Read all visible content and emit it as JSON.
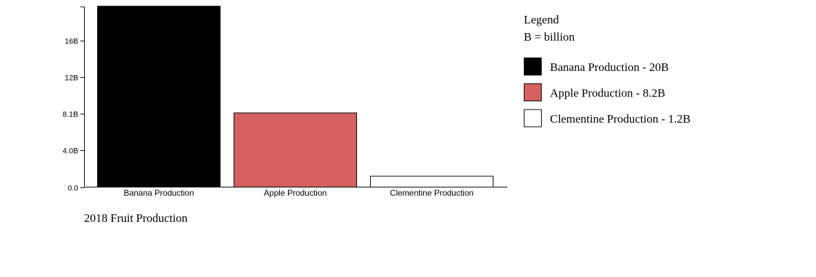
{
  "chart_data": {
    "type": "bar",
    "title": "2018 Fruit Production",
    "xlabel": "",
    "ylabel": "",
    "categories": [
      "Banana Production",
      "Apple Production",
      "Clementine Production"
    ],
    "values": [
      20000000000,
      8200000000,
      1200000000
    ],
    "colors": [
      "#000000",
      "#d46060",
      "#ffffff"
    ],
    "ylim": [
      0,
      20000000000
    ],
    "y_ticks": [
      {
        "value": 0,
        "label": "0.0"
      },
      {
        "value": 4050000000,
        "label": "4.0B"
      },
      {
        "value": 8100000000,
        "label": "8.1B"
      },
      {
        "value": 12150000000,
        "label": "12B"
      },
      {
        "value": 16200000000,
        "label": "16B"
      }
    ],
    "grid": false,
    "legend": {
      "title": "Legend",
      "subtitle": "B = billion",
      "placement": "right",
      "entries": [
        "Banana Production - 20B",
        "Apple Production - 8.2B",
        "Clementine Production - 1.2B"
      ]
    }
  }
}
